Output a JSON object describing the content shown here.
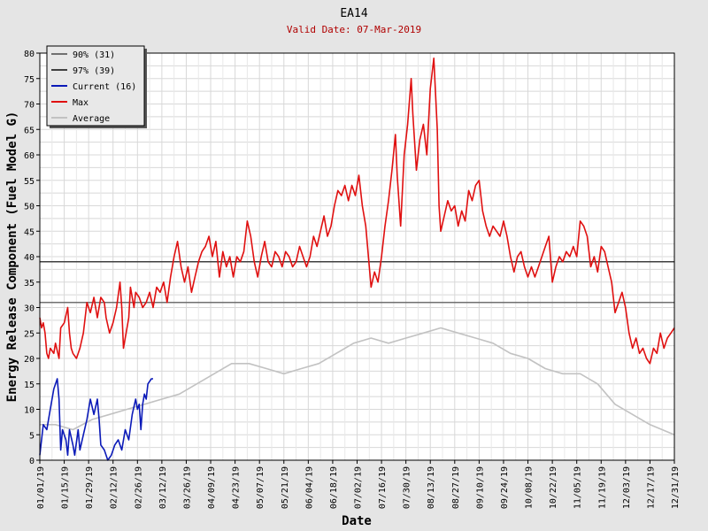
{
  "chart_data": {
    "type": "line",
    "title": "EA14",
    "subtitle": "Valid Date: 07-Mar-2019",
    "xlabel": "Date",
    "ylabel": "Energy Release Component (Fuel Model G)",
    "ylim": [
      0,
      80
    ],
    "yticks": [
      0,
      5,
      10,
      15,
      20,
      25,
      30,
      35,
      40,
      45,
      50,
      55,
      60,
      65,
      70,
      75,
      80
    ],
    "x_range": [
      "01/01/19",
      "12/31/19"
    ],
    "x_tick_labels": [
      "01/01/19",
      "01/15/19",
      "01/29/19",
      "02/12/19",
      "02/26/19",
      "03/12/19",
      "03/26/19",
      "04/09/19",
      "04/23/19",
      "05/07/19",
      "05/21/19",
      "06/04/19",
      "06/18/19",
      "07/02/19",
      "07/16/19",
      "07/30/19",
      "08/13/19",
      "08/27/19",
      "09/10/19",
      "09/24/19",
      "10/08/19",
      "10/22/19",
      "11/05/19",
      "11/19/19",
      "12/03/19",
      "12/17/19",
      "12/31/19"
    ],
    "grid": true,
    "legend_position": "top-left",
    "reference_lines": [
      {
        "name": "90% (31)",
        "value": 31,
        "color": "#707070"
      },
      {
        "name": "97% (39)",
        "value": 39,
        "color": "#404040"
      }
    ],
    "series": [
      {
        "name": "Current (16)",
        "color": "#0b1ab8",
        "points": [
          [
            "01/01/19",
            1
          ],
          [
            "01/03/19",
            7
          ],
          [
            "01/05/19",
            6
          ],
          [
            "01/07/19",
            10
          ],
          [
            "01/09/19",
            14
          ],
          [
            "01/11/19",
            16
          ],
          [
            "01/12/19",
            12
          ],
          [
            "01/13/19",
            2
          ],
          [
            "01/14/19",
            6
          ],
          [
            "01/16/19",
            4
          ],
          [
            "01/17/19",
            1
          ],
          [
            "01/18/19",
            6
          ],
          [
            "01/20/19",
            3
          ],
          [
            "01/21/19",
            1
          ],
          [
            "01/23/19",
            6
          ],
          [
            "01/24/19",
            2
          ],
          [
            "01/26/19",
            5
          ],
          [
            "01/28/19",
            8
          ],
          [
            "01/30/19",
            12
          ],
          [
            "02/01/19",
            9
          ],
          [
            "02/03/19",
            12
          ],
          [
            "02/04/19",
            8
          ],
          [
            "02/05/19",
            3
          ],
          [
            "02/07/19",
            2
          ],
          [
            "02/09/19",
            0
          ],
          [
            "02/11/19",
            1
          ],
          [
            "02/13/19",
            3
          ],
          [
            "02/15/19",
            4
          ],
          [
            "02/17/19",
            2
          ],
          [
            "02/19/19",
            6
          ],
          [
            "02/21/19",
            4
          ],
          [
            "02/23/19",
            9
          ],
          [
            "02/25/19",
            12
          ],
          [
            "02/26/19",
            10
          ],
          [
            "02/27/19",
            11
          ],
          [
            "02/28/19",
            6
          ],
          [
            "03/01/19",
            11
          ],
          [
            "03/02/19",
            13
          ],
          [
            "03/03/19",
            12
          ],
          [
            "03/04/19",
            15
          ],
          [
            "03/06/19",
            16
          ],
          [
            "03/07/19",
            16
          ]
        ]
      },
      {
        "name": "Max",
        "color": "#e01010",
        "points": [
          [
            "01/01/19",
            28
          ],
          [
            "01/02/19",
            26
          ],
          [
            "01/03/19",
            27
          ],
          [
            "01/04/19",
            25
          ],
          [
            "01/05/19",
            21
          ],
          [
            "01/06/19",
            20
          ],
          [
            "01/07/19",
            22
          ],
          [
            "01/09/19",
            21
          ],
          [
            "01/10/19",
            23
          ],
          [
            "01/12/19",
            20
          ],
          [
            "01/13/19",
            26
          ],
          [
            "01/15/19",
            27
          ],
          [
            "01/17/19",
            30
          ],
          [
            "01/18/19",
            25
          ],
          [
            "01/19/19",
            22
          ],
          [
            "01/20/19",
            21
          ],
          [
            "01/22/19",
            20
          ],
          [
            "01/24/19",
            22
          ],
          [
            "01/26/19",
            25
          ],
          [
            "01/28/19",
            31
          ],
          [
            "01/30/19",
            29
          ],
          [
            "02/01/19",
            32
          ],
          [
            "02/03/19",
            28
          ],
          [
            "02/05/19",
            32
          ],
          [
            "02/07/19",
            31
          ],
          [
            "02/08/19",
            28
          ],
          [
            "02/10/19",
            25
          ],
          [
            "02/12/19",
            27
          ],
          [
            "02/14/19",
            30
          ],
          [
            "02/16/19",
            35
          ],
          [
            "02/17/19",
            30
          ],
          [
            "02/18/19",
            22
          ],
          [
            "02/19/19",
            24
          ],
          [
            "02/21/19",
            28
          ],
          [
            "02/22/19",
            34
          ],
          [
            "02/24/19",
            30
          ],
          [
            "02/25/19",
            33
          ],
          [
            "02/27/19",
            32
          ],
          [
            "03/01/19",
            30
          ],
          [
            "03/03/19",
            31
          ],
          [
            "03/05/19",
            33
          ],
          [
            "03/07/19",
            30
          ],
          [
            "03/09/19",
            34
          ],
          [
            "03/11/19",
            33
          ],
          [
            "03/13/19",
            35
          ],
          [
            "03/15/19",
            31
          ],
          [
            "03/17/19",
            36
          ],
          [
            "03/19/19",
            40
          ],
          [
            "03/21/19",
            43
          ],
          [
            "03/23/19",
            38
          ],
          [
            "03/25/19",
            35
          ],
          [
            "03/27/19",
            38
          ],
          [
            "03/29/19",
            33
          ],
          [
            "03/31/19",
            36
          ],
          [
            "04/02/19",
            39
          ],
          [
            "04/04/19",
            41
          ],
          [
            "04/06/19",
            42
          ],
          [
            "04/08/19",
            44
          ],
          [
            "04/10/19",
            40
          ],
          [
            "04/12/19",
            43
          ],
          [
            "04/14/19",
            36
          ],
          [
            "04/16/19",
            41
          ],
          [
            "04/18/19",
            38
          ],
          [
            "04/20/19",
            40
          ],
          [
            "04/22/19",
            36
          ],
          [
            "04/24/19",
            40
          ],
          [
            "04/26/19",
            39
          ],
          [
            "04/28/19",
            41
          ],
          [
            "04/30/19",
            47
          ],
          [
            "05/02/19",
            44
          ],
          [
            "05/04/19",
            39
          ],
          [
            "05/06/19",
            36
          ],
          [
            "05/08/19",
            40
          ],
          [
            "05/10/19",
            43
          ],
          [
            "05/12/19",
            39
          ],
          [
            "05/14/19",
            38
          ],
          [
            "05/16/19",
            41
          ],
          [
            "05/18/19",
            40
          ],
          [
            "05/20/19",
            38
          ],
          [
            "05/22/19",
            41
          ],
          [
            "05/24/19",
            40
          ],
          [
            "05/26/19",
            38
          ],
          [
            "05/28/19",
            39
          ],
          [
            "05/30/19",
            42
          ],
          [
            "06/01/19",
            40
          ],
          [
            "06/03/19",
            38
          ],
          [
            "06/05/19",
            40
          ],
          [
            "06/07/19",
            44
          ],
          [
            "06/09/19",
            42
          ],
          [
            "06/11/19",
            45
          ],
          [
            "06/13/19",
            48
          ],
          [
            "06/15/19",
            44
          ],
          [
            "06/17/19",
            46
          ],
          [
            "06/19/19",
            50
          ],
          [
            "06/21/19",
            53
          ],
          [
            "06/23/19",
            52
          ],
          [
            "06/25/19",
            54
          ],
          [
            "06/27/19",
            51
          ],
          [
            "06/29/19",
            54
          ],
          [
            "07/01/19",
            52
          ],
          [
            "07/03/19",
            56
          ],
          [
            "07/05/19",
            50
          ],
          [
            "07/07/19",
            46
          ],
          [
            "07/09/19",
            38
          ],
          [
            "07/10/19",
            34
          ],
          [
            "07/12/19",
            37
          ],
          [
            "07/14/19",
            35
          ],
          [
            "07/16/19",
            40
          ],
          [
            "07/18/19",
            46
          ],
          [
            "07/20/19",
            51
          ],
          [
            "07/22/19",
            57
          ],
          [
            "07/24/19",
            64
          ],
          [
            "07/25/19",
            56
          ],
          [
            "07/27/19",
            46
          ],
          [
            "07/29/19",
            60
          ],
          [
            "07/31/19",
            66
          ],
          [
            "08/02/19",
            75
          ],
          [
            "08/03/19",
            68
          ],
          [
            "08/05/19",
            57
          ],
          [
            "08/07/19",
            63
          ],
          [
            "08/09/19",
            66
          ],
          [
            "08/11/19",
            60
          ],
          [
            "08/13/19",
            73
          ],
          [
            "08/15/19",
            79
          ],
          [
            "08/17/19",
            65
          ],
          [
            "08/18/19",
            50
          ],
          [
            "08/19/19",
            45
          ],
          [
            "08/21/19",
            48
          ],
          [
            "08/23/19",
            51
          ],
          [
            "08/25/19",
            49
          ],
          [
            "08/27/19",
            50
          ],
          [
            "08/29/19",
            46
          ],
          [
            "08/31/19",
            49
          ],
          [
            "09/02/19",
            47
          ],
          [
            "09/04/19",
            53
          ],
          [
            "09/06/19",
            51
          ],
          [
            "09/08/19",
            54
          ],
          [
            "09/10/19",
            55
          ],
          [
            "09/12/19",
            49
          ],
          [
            "09/14/19",
            46
          ],
          [
            "09/16/19",
            44
          ],
          [
            "09/18/19",
            46
          ],
          [
            "09/20/19",
            45
          ],
          [
            "09/22/19",
            44
          ],
          [
            "09/24/19",
            47
          ],
          [
            "09/26/19",
            44
          ],
          [
            "09/28/19",
            40
          ],
          [
            "09/30/19",
            37
          ],
          [
            "10/02/19",
            40
          ],
          [
            "10/04/19",
            41
          ],
          [
            "10/06/19",
            38
          ],
          [
            "10/08/19",
            36
          ],
          [
            "10/10/19",
            38
          ],
          [
            "10/12/19",
            36
          ],
          [
            "10/14/19",
            38
          ],
          [
            "10/16/19",
            40
          ],
          [
            "10/18/19",
            42
          ],
          [
            "10/20/19",
            44
          ],
          [
            "10/22/19",
            35
          ],
          [
            "10/24/19",
            38
          ],
          [
            "10/26/19",
            40
          ],
          [
            "10/28/19",
            39
          ],
          [
            "10/30/19",
            41
          ],
          [
            "11/01/19",
            40
          ],
          [
            "11/03/19",
            42
          ],
          [
            "11/05/19",
            40
          ],
          [
            "11/07/19",
            47
          ],
          [
            "11/09/19",
            46
          ],
          [
            "11/11/19",
            44
          ],
          [
            "11/13/19",
            38
          ],
          [
            "11/15/19",
            40
          ],
          [
            "11/17/19",
            37
          ],
          [
            "11/19/19",
            42
          ],
          [
            "11/21/19",
            41
          ],
          [
            "11/23/19",
            38
          ],
          [
            "11/25/19",
            35
          ],
          [
            "11/27/19",
            29
          ],
          [
            "11/29/19",
            31
          ],
          [
            "12/01/19",
            33
          ],
          [
            "12/03/19",
            30
          ],
          [
            "12/05/19",
            25
          ],
          [
            "12/07/19",
            22
          ],
          [
            "12/09/19",
            24
          ],
          [
            "12/11/19",
            21
          ],
          [
            "12/13/19",
            22
          ],
          [
            "12/15/19",
            20
          ],
          [
            "12/17/19",
            19
          ],
          [
            "12/19/19",
            22
          ],
          [
            "12/21/19",
            21
          ],
          [
            "12/23/19",
            25
          ],
          [
            "12/25/19",
            22
          ],
          [
            "12/27/19",
            24
          ],
          [
            "12/29/19",
            25
          ],
          [
            "12/31/19",
            26
          ]
        ]
      },
      {
        "name": "Average",
        "color": "#c2c2c2",
        "points": [
          [
            "01/01/19",
            7
          ],
          [
            "01/10/19",
            7
          ],
          [
            "01/20/19",
            6
          ],
          [
            "01/31/19",
            8
          ],
          [
            "02/10/19",
            9
          ],
          [
            "02/20/19",
            10
          ],
          [
            "03/02/19",
            11
          ],
          [
            "03/12/19",
            12
          ],
          [
            "03/22/19",
            13
          ],
          [
            "04/01/19",
            15
          ],
          [
            "04/11/19",
            17
          ],
          [
            "04/21/19",
            19
          ],
          [
            "05/01/19",
            19
          ],
          [
            "05/11/19",
            18
          ],
          [
            "05/21/19",
            17
          ],
          [
            "05/31/19",
            18
          ],
          [
            "06/10/19",
            19
          ],
          [
            "06/20/19",
            21
          ],
          [
            "06/30/19",
            23
          ],
          [
            "07/10/19",
            24
          ],
          [
            "07/20/19",
            23
          ],
          [
            "07/30/19",
            24
          ],
          [
            "08/09/19",
            25
          ],
          [
            "08/19/19",
            26
          ],
          [
            "08/29/19",
            25
          ],
          [
            "09/08/19",
            24
          ],
          [
            "09/18/19",
            23
          ],
          [
            "09/28/19",
            21
          ],
          [
            "10/08/19",
            20
          ],
          [
            "10/18/19",
            18
          ],
          [
            "10/28/19",
            17
          ],
          [
            "11/07/19",
            17
          ],
          [
            "11/17/19",
            15
          ],
          [
            "11/27/19",
            11
          ],
          [
            "12/07/19",
            9
          ],
          [
            "12/17/19",
            7
          ],
          [
            "12/31/19",
            5
          ]
        ]
      }
    ]
  }
}
